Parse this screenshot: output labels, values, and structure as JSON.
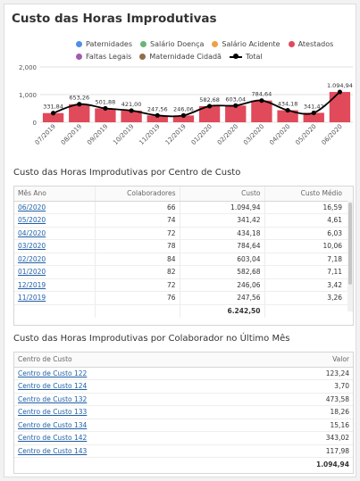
{
  "title": "Custo das Horas Improdutivas",
  "legend": [
    {
      "label": "Paternidades",
      "color": "#4f8fe6"
    },
    {
      "label": "Salário Doença",
      "color": "#6ab47a"
    },
    {
      "label": "Salário Acidente",
      "color": "#f0a042"
    },
    {
      "label": "Atestados",
      "color": "#e04a5a"
    },
    {
      "label": "Faltas Legais",
      "color": "#a35ab0"
    },
    {
      "label": "Maternidade Cidadã",
      "color": "#8f6e4a"
    },
    {
      "label": "Total",
      "color": "#000000"
    }
  ],
  "chart_data": {
    "type": "bar",
    "categories": [
      "07/2019",
      "08/2019",
      "09/2019",
      "10/2019",
      "11/2019",
      "12/2019",
      "01/2020",
      "02/2020",
      "03/2020",
      "04/2020",
      "05/2020",
      "06/2020"
    ],
    "series": [
      {
        "name": "Atestados",
        "values": [
          331.84,
          653.26,
          501.88,
          421.0,
          247.56,
          246.06,
          582.68,
          603.04,
          784.64,
          434.18,
          341.42,
          1094.94
        ],
        "color": "#e04a5a"
      },
      {
        "name": "Total",
        "type": "line",
        "values": [
          331.84,
          653.26,
          501.88,
          421.0,
          247.56,
          246.06,
          582.68,
          603.04,
          784.64,
          434.18,
          341.42,
          1094.94
        ],
        "color": "#000000"
      }
    ],
    "value_labels": [
      "331,84",
      "653,26",
      "501,88",
      "421,00",
      "247,56",
      "246,06",
      "582,68",
      "603,04",
      "784,64",
      "434,18",
      "341,42",
      "1.094,94"
    ],
    "yticks": [
      "0",
      "1,000",
      "2,000"
    ],
    "ylim": [
      0,
      2000
    ]
  },
  "table1": {
    "title": "Custo das Horas Improdutivas por Centro de Custo",
    "headers": [
      "Mês Ano",
      "Colaboradores",
      "Custo",
      "Custo Médio"
    ],
    "rows": [
      {
        "mes": "06/2020",
        "colab": "66",
        "custo": "1.094,94",
        "medio": "16,59"
      },
      {
        "mes": "05/2020",
        "colab": "74",
        "custo": "341,42",
        "medio": "4,61"
      },
      {
        "mes": "04/2020",
        "colab": "72",
        "custo": "434,18",
        "medio": "6,03"
      },
      {
        "mes": "03/2020",
        "colab": "78",
        "custo": "784,64",
        "medio": "10,06"
      },
      {
        "mes": "02/2020",
        "colab": "84",
        "custo": "603,04",
        "medio": "7,18"
      },
      {
        "mes": "01/2020",
        "colab": "82",
        "custo": "582,68",
        "medio": "7,11"
      },
      {
        "mes": "12/2019",
        "colab": "72",
        "custo": "246,06",
        "medio": "3,42"
      },
      {
        "mes": "11/2019",
        "colab": "76",
        "custo": "247,56",
        "medio": "3,26"
      }
    ],
    "total": "6.242,50"
  },
  "table2": {
    "title": "Custo das Horas Improdutivas por Colaborador no Último Mês",
    "headers": [
      "Centro de Custo",
      "Valor"
    ],
    "rows": [
      {
        "cc": "Centro de Custo 122",
        "valor": "123,24"
      },
      {
        "cc": "Centro de Custo 124",
        "valor": "3,70"
      },
      {
        "cc": "Centro de Custo 132",
        "valor": "473,58"
      },
      {
        "cc": "Centro de Custo 133",
        "valor": "18,26"
      },
      {
        "cc": "Centro de Custo 134",
        "valor": "15,16"
      },
      {
        "cc": "Centro de Custo 142",
        "valor": "343,02"
      },
      {
        "cc": "Centro de Custo 143",
        "valor": "117,98"
      }
    ],
    "total": "1.094,94"
  }
}
